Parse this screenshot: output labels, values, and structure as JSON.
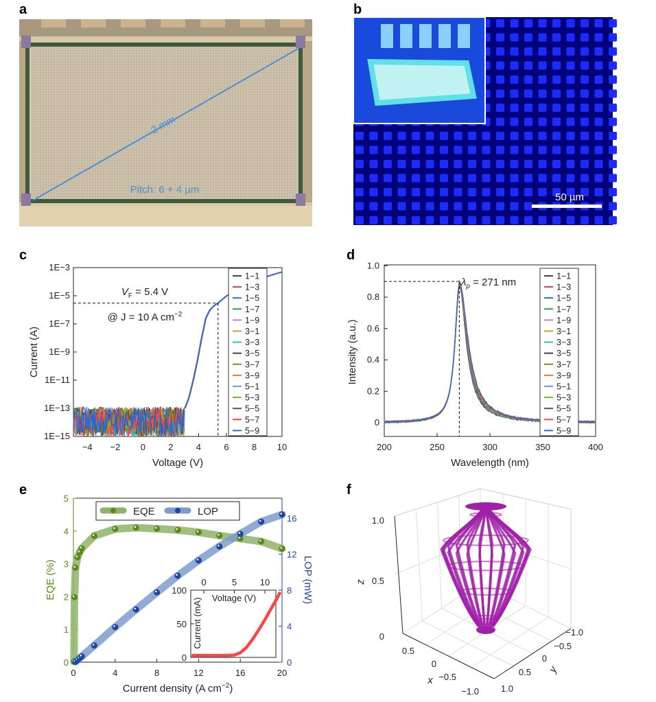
{
  "panel_labels": [
    "a",
    "b",
    "c",
    "d",
    "e",
    "f"
  ],
  "photo_a": {
    "diagonal_label": "2 mm",
    "pitch_label": "Pitch: 6 + 4 µm",
    "line_color": "#4a90d9"
  },
  "photo_b": {
    "scale_bar_label": "50 µm",
    "pixel_color": "#1a2cff"
  },
  "chart_data": [
    {
      "id": "c",
      "type": "line",
      "xlabel": "Voltage (V)",
      "ylabel": "Current (A)",
      "xlim": [
        -5,
        10
      ],
      "yscale": "log",
      "ylim": [
        1e-15,
        0.001
      ],
      "xticks": [
        "−4",
        "−2",
        "0",
        "2",
        "4",
        "6",
        "8",
        "10"
      ],
      "xtick_values": [
        -4,
        -2,
        0,
        2,
        4,
        6,
        8,
        10
      ],
      "yticks": [
        "1E−3",
        "1E−5",
        "1E−7",
        "1E−9",
        "1E−11",
        "1E−13",
        "1E−15"
      ],
      "ytick_values": [
        -3,
        -5,
        -7,
        -9,
        -11,
        -13,
        -15
      ],
      "annotation_vf": "V",
      "annotation_vf_sub": "F",
      "annotation_vf_rest": " = 5.4 V",
      "annotation_j": "@ J = 10 A cm",
      "annotation_j_sup": "−2",
      "vf": 5.4,
      "i_at_vf": 3e-06,
      "curve_v": [
        3.0,
        3.3,
        3.6,
        3.9,
        4.2,
        4.5,
        4.8,
        5.1,
        5.4,
        6.0,
        7.0,
        8.0,
        9.0,
        10.0
      ],
      "curve_logi": [
        -13.0,
        -12.2,
        -11.0,
        -9.6,
        -8.0,
        -6.6,
        -6.0,
        -5.7,
        -5.5,
        -5.0,
        -4.5,
        -4.0,
        -3.6,
        -3.3
      ],
      "noise_floor_logi": [
        -15,
        -12.9
      ],
      "legend": [
        "1−1",
        "1−3",
        "1−5",
        "1−7",
        "1−9",
        "3−1",
        "3−3",
        "3−5",
        "3−7",
        "3−9",
        "5−1",
        "5−3",
        "5−5",
        "5−7",
        "5−9"
      ],
      "colors": [
        "#444444",
        "#e8383d",
        "#1f6fe0",
        "#2ca05a",
        "#b57ee0",
        "#c9a020",
        "#22c4c4",
        "#5a3838",
        "#8a8a10",
        "#f07a20",
        "#6aa0e0",
        "#78b820",
        "#555555",
        "#f04848",
        "#2a6ad8"
      ]
    },
    {
      "id": "d",
      "type": "line",
      "xlabel": "Wavelength (nm)",
      "ylabel": "Intensity (a.u.)",
      "xlim": [
        200,
        400
      ],
      "ylim": [
        -0.09,
        1.0
      ],
      "xticks": [
        "200",
        "250",
        "300",
        "350",
        "400"
      ],
      "xtick_values": [
        200,
        250,
        300,
        350,
        400
      ],
      "yticks": [
        "1.0",
        "0.8",
        "0.6",
        "0.4",
        "0.2",
        "0"
      ],
      "ytick_values": [
        1.0,
        0.8,
        0.6,
        0.4,
        0.2,
        0
      ],
      "peak_symbol": "λ",
      "peak_sub": "p",
      "peak_rest": " = 271 nm",
      "peak_wavelength": 271,
      "peak_intensity": 0.87,
      "marker_level": 0.9,
      "legend": [
        "1−1",
        "1−3",
        "1−5",
        "1−7",
        "1−9",
        "3−1",
        "3−3",
        "3−5",
        "3−7",
        "3−9",
        "5−1",
        "5−3",
        "5−5",
        "5−7",
        "5−9"
      ]
    },
    {
      "id": "e",
      "type": "scatter",
      "xlabel": "Current density (A cm",
      "xlabel_sup": "−2",
      "xlabel_end": ")",
      "ylabel_left": "EQE (%)",
      "ylabel_right": "LOP (mW)",
      "xlim": [
        0,
        20
      ],
      "ylim_left": [
        0,
        5
      ],
      "ylim_right": [
        0,
        18.2
      ],
      "xticks": [
        "0",
        "4",
        "8",
        "12",
        "16",
        "20"
      ],
      "xtick_values": [
        0,
        4,
        8,
        12,
        16,
        20
      ],
      "yticks_left": [
        "0",
        "1",
        "2",
        "3",
        "4",
        "5"
      ],
      "ytick_left_values": [
        0,
        1,
        2,
        3,
        4,
        5
      ],
      "yticks_right": [
        "0",
        "4",
        "8",
        "12",
        "16"
      ],
      "ytick_right_values": [
        0,
        4,
        8,
        12,
        16
      ],
      "series": [
        {
          "name": "EQE",
          "color": "#5a8a1a",
          "band": "#8fb36a",
          "x": [
            0.05,
            0.1,
            0.2,
            0.4,
            0.6,
            0.8,
            2,
            4,
            6,
            8,
            10,
            12,
            14,
            16,
            18,
            20
          ],
          "y": [
            0.02,
            1.98,
            2.88,
            3.2,
            3.35,
            3.47,
            3.85,
            4.06,
            4.1,
            4.07,
            4.03,
            3.96,
            3.86,
            3.77,
            3.68,
            3.46
          ]
        },
        {
          "name": "LOP",
          "color": "#1e46a0",
          "band": "#7c9ccc",
          "x": [
            0.2,
            0.4,
            0.6,
            0.8,
            2,
            4,
            6,
            8,
            10,
            12,
            14,
            16,
            18,
            20
          ],
          "y": [
            0.05,
            0.25,
            0.45,
            0.65,
            1.85,
            3.9,
            5.85,
            7.75,
            9.6,
            11.3,
            12.85,
            14.25,
            15.6,
            16.4
          ]
        }
      ],
      "inset": {
        "xlabel": "Voltage (V)",
        "ylabel": "Current (mA)",
        "color": "#ff4444",
        "xticks": [
          "0",
          "5",
          "10"
        ],
        "xtick_values": [
          0,
          5,
          10
        ],
        "yticks": [
          "0",
          "50",
          "100"
        ],
        "ytick_values": [
          0,
          50,
          100
        ],
        "x": [
          -2,
          4,
          5,
          6,
          7,
          8,
          9,
          10,
          11,
          12,
          12.5
        ],
        "y": [
          3,
          3,
          3.5,
          7,
          15,
          27,
          41,
          56,
          72,
          88,
          97
        ]
      }
    },
    {
      "id": "f",
      "type": "surface3d",
      "xlabel": "x",
      "ylabel": "y",
      "zlabel": "z",
      "zticks": [
        "0",
        "0.5",
        "1.0"
      ],
      "xticks": [
        "0.5",
        "0",
        "−0.5",
        "−1.0"
      ],
      "yticks": [
        "−1.0",
        "−0.5",
        "0",
        "0.5",
        "1.0"
      ],
      "color": "#a020a8"
    }
  ]
}
